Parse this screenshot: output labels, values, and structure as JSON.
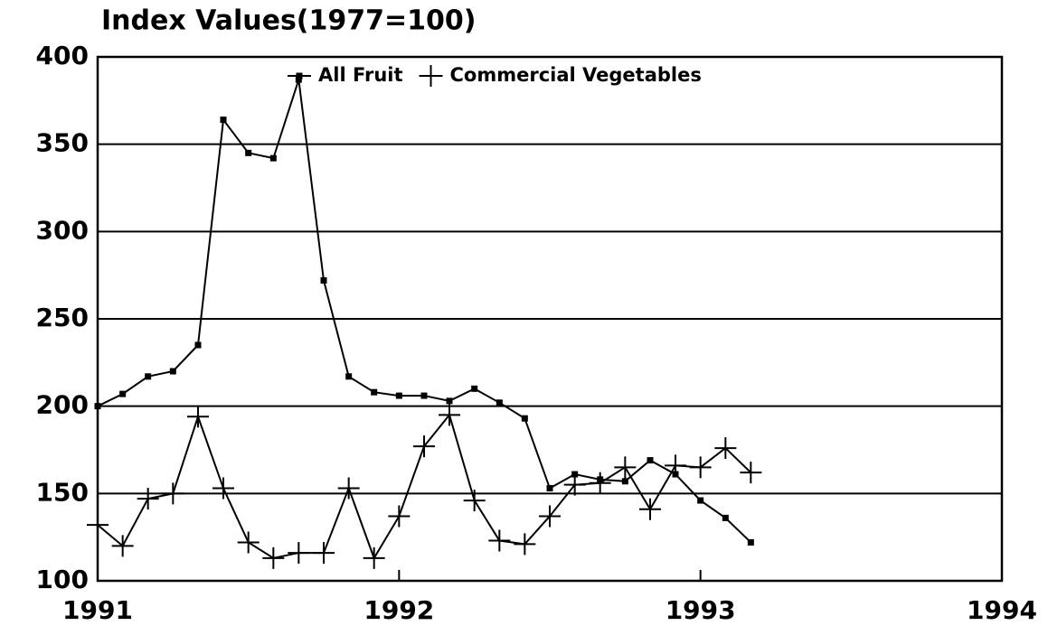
{
  "chart_data": {
    "type": "line",
    "title": "Index Values(1977=100)",
    "x": [
      1991,
      1991.083,
      1991.167,
      1991.25,
      1991.333,
      1991.417,
      1991.5,
      1991.583,
      1991.667,
      1991.75,
      1991.833,
      1991.917,
      1992,
      1992.083,
      1992.167,
      1992.25,
      1992.333,
      1992.417,
      1992.5,
      1992.583,
      1992.667,
      1992.75,
      1992.833,
      1992.917,
      1993,
      1993.083,
      1993.167
    ],
    "series": [
      {
        "name": "All Fruit",
        "color": "#000000",
        "marker": "square",
        "values": [
          200,
          207,
          217,
          220,
          235,
          364,
          345,
          342,
          387,
          272,
          217,
          208,
          206,
          206,
          203,
          210,
          202,
          193,
          153,
          161,
          158,
          157,
          169,
          161,
          146,
          136,
          122
        ]
      },
      {
        "name": "Commercial Vegetables",
        "color": "#000000",
        "marker": "plus",
        "values": [
          132,
          120,
          147,
          150,
          194,
          153,
          122,
          113,
          116,
          116,
          153,
          113,
          137,
          177,
          195,
          146,
          123,
          121,
          137,
          155,
          156,
          165,
          141,
          166,
          165,
          176,
          162
        ]
      }
    ],
    "xlim": [
      1991,
      1994
    ],
    "xticks": [
      1991,
      1992,
      1993,
      1994
    ],
    "ylim": [
      100,
      400
    ],
    "yticks": [
      100,
      150,
      200,
      250,
      300,
      350,
      400
    ],
    "grid": true,
    "legend": "top"
  }
}
